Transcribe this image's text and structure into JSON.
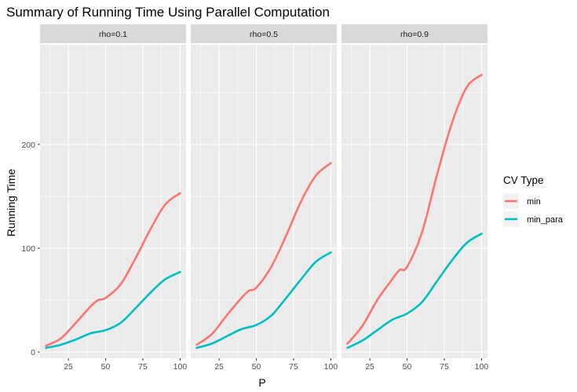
{
  "chart_data": {
    "type": "line",
    "title": "Summary of Running Time Using Parallel Computation",
    "xlabel": "P",
    "ylabel": "Running Time",
    "xlim": [
      6,
      104
    ],
    "ylim": [
      -6,
      296
    ],
    "x_ticks": [
      25,
      50,
      75,
      100
    ],
    "y_ticks": [
      0,
      100,
      200
    ],
    "grid": true,
    "legend": {
      "title": "CV Type",
      "placement": "right",
      "entries": [
        {
          "name": "min",
          "color": "#F8766D"
        },
        {
          "name": "min_para",
          "color": "#00BFC4"
        }
      ]
    },
    "panels": [
      {
        "label": "rho=0.1",
        "series": [
          {
            "name": "min",
            "color": "#F8766D",
            "x": [
              10,
              20,
              30,
              40,
              45,
              50,
              60,
              70,
              80,
              90,
              100
            ],
            "y": [
              6,
              13,
              28,
              44,
              50,
              52,
              65,
              90,
              118,
              142,
              153
            ]
          },
          {
            "name": "min_para",
            "color": "#00BFC4",
            "x": [
              10,
              20,
              30,
              40,
              50,
              60,
              70,
              80,
              90,
              100
            ],
            "y": [
              4,
              7,
              12,
              18,
              21,
              28,
              42,
              57,
              70,
              77
            ]
          }
        ]
      },
      {
        "label": "rho=0.5",
        "series": [
          {
            "name": "min",
            "color": "#F8766D",
            "x": [
              10,
              20,
              30,
              40,
              45,
              50,
              60,
              70,
              80,
              90,
              100
            ],
            "y": [
              7,
              17,
              35,
              52,
              59,
              62,
              82,
              112,
              145,
              170,
              182
            ]
          },
          {
            "name": "min_para",
            "color": "#00BFC4",
            "x": [
              10,
              20,
              30,
              40,
              50,
              60,
              70,
              80,
              90,
              100
            ],
            "y": [
              4,
              8,
              15,
              22,
              26,
              35,
              52,
              70,
              87,
              96
            ]
          }
        ]
      },
      {
        "label": "rho=0.9",
        "series": [
          {
            "name": "min",
            "color": "#F8766D",
            "x": [
              10,
              20,
              30,
              40,
              45,
              50,
              60,
              70,
              80,
              90,
              100
            ],
            "y": [
              8,
              25,
              50,
              70,
              79,
              82,
              115,
              170,
              220,
              255,
              267
            ]
          },
          {
            "name": "min_para",
            "color": "#00BFC4",
            "x": [
              10,
              20,
              30,
              40,
              50,
              60,
              70,
              80,
              90,
              100
            ],
            "y": [
              4,
              11,
              21,
              31,
              37,
              48,
              68,
              88,
              105,
              114
            ]
          }
        ]
      }
    ]
  }
}
